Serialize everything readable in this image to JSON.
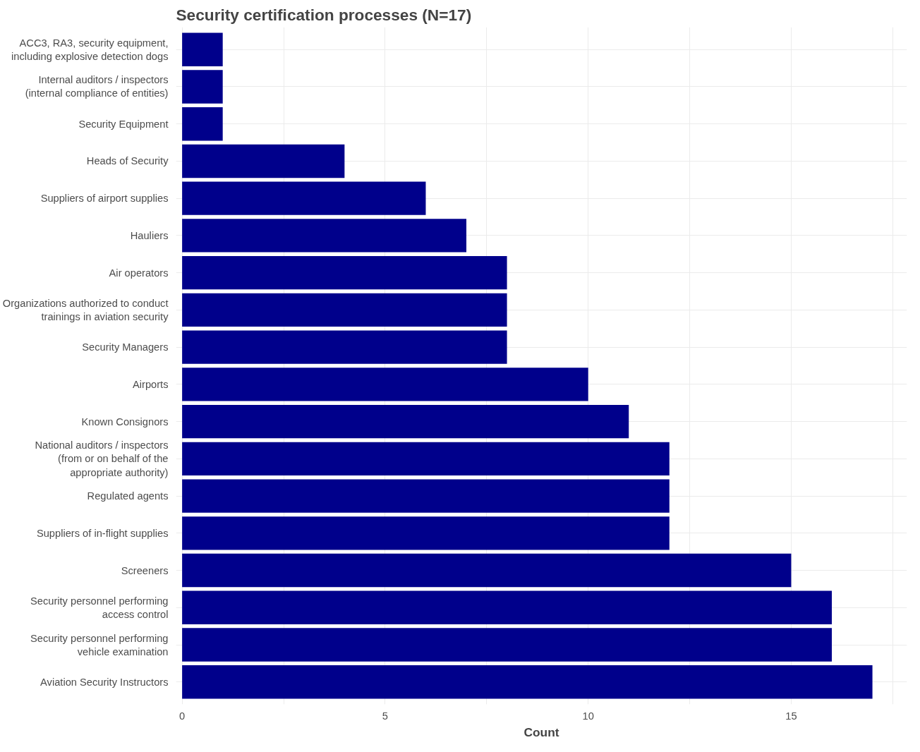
{
  "chart_data": {
    "type": "bar",
    "orientation": "horizontal",
    "title": "Security certification processes (N=17)",
    "xlabel": "Count",
    "categories": [
      "ACC3, RA3, security equipment,\nincluding explosive detection dogs",
      "Internal auditors / inspectors\n(internal compliance of entities)",
      "Security Equipment",
      "Heads of Security",
      "Suppliers of airport supplies",
      "Hauliers",
      "Air operators",
      "Organizations authorized to conduct\ntrainings in aviation security",
      "Security Managers",
      "Airports",
      "Known Consignors",
      "National auditors / inspectors\n(from or on behalf of the\nappropriate authority)",
      "Regulated agents",
      "Suppliers of in-flight supplies",
      "Screeners",
      "Security personnel performing\naccess control",
      "Security personnel performing\nvehicle examination",
      "Aviation Security Instructors"
    ],
    "values": [
      1,
      1,
      1,
      4,
      6,
      7,
      8,
      8,
      8,
      10,
      11,
      12,
      12,
      12,
      15,
      16,
      16,
      17
    ],
    "color": "#00008b",
    "xlim": [
      -0.15,
      17.85
    ],
    "xticks": [
      0,
      {
        "value": 2.5,
        "label": null
      },
      5,
      {
        "value": 7.5,
        "label": null
      },
      10,
      {
        "value": 12.5,
        "label": null
      },
      15,
      {
        "value": 17.5,
        "label": null
      }
    ],
    "grid": true
  }
}
